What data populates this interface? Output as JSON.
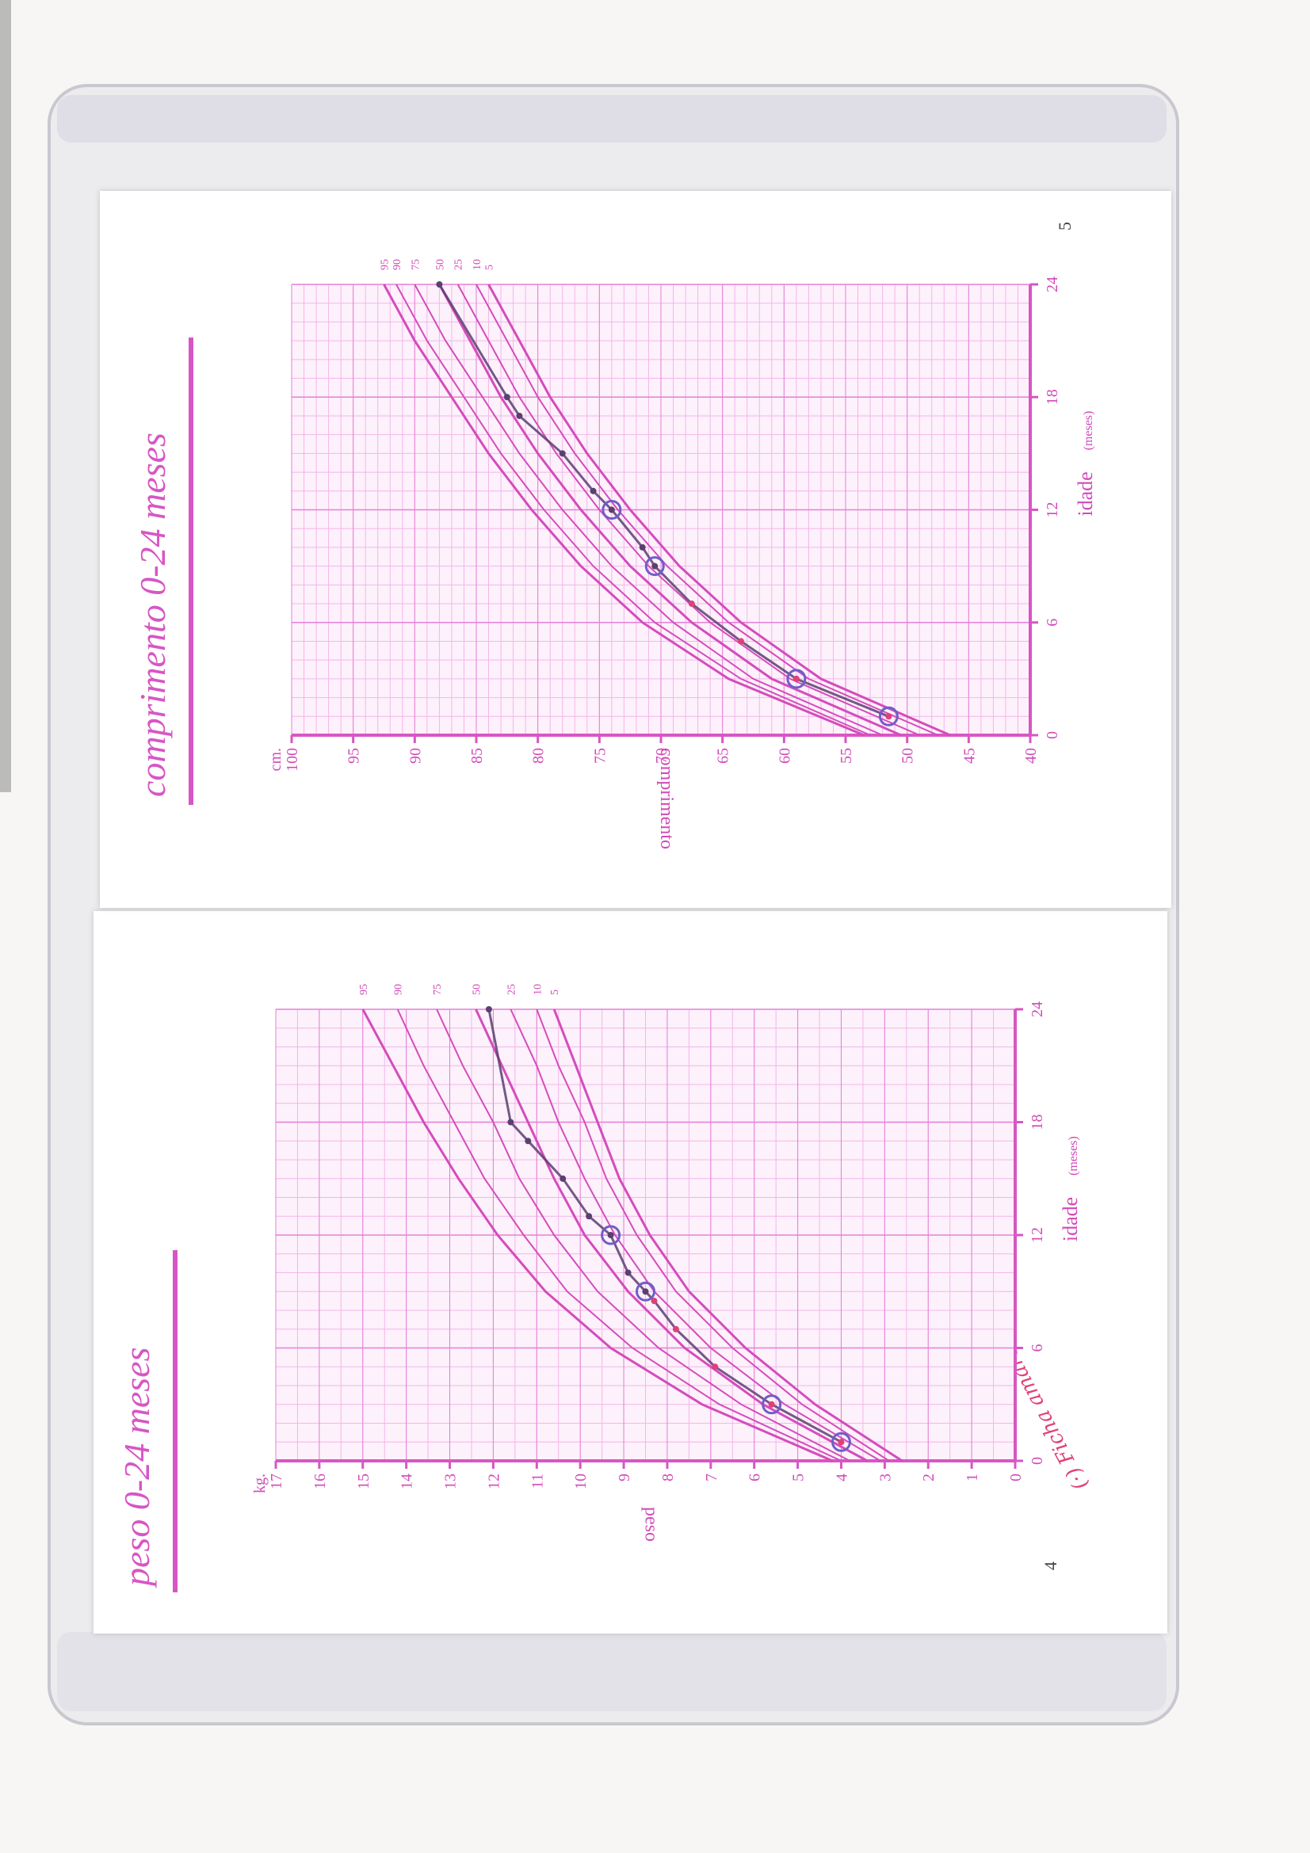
{
  "colors": {
    "accent": "#d756c4",
    "grid_minor": "#f3b6ea",
    "grid_major": "#e480d6",
    "curve": "#d44cbc",
    "pen_blue": "#6e5ec8",
    "pen_dark": "#5a4070",
    "pen_red": "#e0407a"
  },
  "pages": {
    "left": {
      "title": "peso 0-24 meses",
      "number": "4"
    },
    "right": {
      "title": "comprimento 0-24 meses",
      "number": "5"
    }
  },
  "handwritten_note": "(·) Ficha amarela",
  "chart_data": [
    {
      "type": "line",
      "title": "peso 0-24 meses",
      "xlabel": "idade",
      "xlabel_unit": "(meses)",
      "ylabel": "peso",
      "yunit": "kg.",
      "xlim": [
        0,
        24
      ],
      "ylim": [
        0,
        17
      ],
      "x_ticks": [
        0,
        6,
        12,
        18,
        24
      ],
      "y_ticks": [
        0,
        1,
        2,
        3,
        4,
        5,
        6,
        7,
        8,
        9,
        10,
        11,
        12,
        13,
        14,
        15,
        16,
        17
      ],
      "grid": true,
      "percentile_curves": [
        {
          "name": "95",
          "x": [
            0,
            3,
            6,
            9,
            12,
            15,
            18,
            21,
            24
          ],
          "values": [
            4.2,
            7.2,
            9.3,
            10.8,
            11.9,
            12.8,
            13.6,
            14.3,
            15.0
          ]
        },
        {
          "name": "90",
          "x": [
            0,
            3,
            6,
            9,
            12,
            15,
            18,
            21,
            24
          ],
          "values": [
            4.0,
            6.8,
            8.8,
            10.3,
            11.3,
            12.2,
            12.9,
            13.6,
            14.2
          ]
        },
        {
          "name": "75",
          "x": [
            0,
            3,
            6,
            9,
            12,
            15,
            18,
            21,
            24
          ],
          "values": [
            3.8,
            6.3,
            8.2,
            9.6,
            10.6,
            11.4,
            12.0,
            12.7,
            13.3
          ]
        },
        {
          "name": "50",
          "x": [
            0,
            3,
            6,
            9,
            12,
            15,
            18,
            21,
            24
          ],
          "values": [
            3.4,
            5.8,
            7.6,
            8.9,
            9.9,
            10.6,
            11.2,
            11.8,
            12.4
          ]
        },
        {
          "name": "25",
          "x": [
            0,
            3,
            6,
            9,
            12,
            15,
            18,
            21,
            24
          ],
          "values": [
            3.1,
            5.3,
            7.0,
            8.3,
            9.2,
            9.9,
            10.5,
            11.0,
            11.6
          ]
        },
        {
          "name": "10",
          "x": [
            0,
            3,
            6,
            9,
            12,
            15,
            18,
            21,
            24
          ],
          "values": [
            2.9,
            4.9,
            6.5,
            7.8,
            8.7,
            9.4,
            9.9,
            10.5,
            11.0
          ]
        },
        {
          "name": "5",
          "x": [
            0,
            3,
            6,
            9,
            12,
            15,
            18,
            21,
            24
          ],
          "values": [
            2.6,
            4.6,
            6.2,
            7.5,
            8.4,
            9.1,
            9.6,
            10.1,
            10.6
          ]
        }
      ],
      "child_measurements": {
        "x": [
          1.0,
          3.0,
          5.0,
          7.0,
          8.5,
          9.0,
          10.0,
          12.0,
          13.0,
          15.0,
          17.0,
          18.0,
          24.0
        ],
        "values": [
          4.0,
          5.6,
          6.9,
          7.8,
          8.3,
          8.5,
          8.9,
          9.3,
          9.8,
          10.4,
          11.2,
          11.6,
          12.1
        ]
      },
      "circled_points": {
        "x": [
          1.0,
          3.0,
          9.0,
          12.0
        ],
        "values": [
          4.0,
          5.6,
          8.5,
          9.3
        ]
      }
    },
    {
      "type": "line",
      "title": "comprimento 0-24 meses",
      "xlabel": "idade",
      "xlabel_unit": "(meses)",
      "ylabel": "comprimento",
      "yunit": "cm.",
      "xlim": [
        0,
        24
      ],
      "ylim": [
        40,
        100
      ],
      "x_ticks": [
        0,
        6,
        12,
        18,
        24
      ],
      "y_ticks": [
        40,
        45,
        50,
        55,
        60,
        65,
        70,
        75,
        80,
        85,
        90,
        95,
        100
      ],
      "grid": true,
      "percentile_curves": [
        {
          "name": "95",
          "x": [
            0,
            3,
            6,
            9,
            12,
            15,
            18,
            21,
            24
          ],
          "values": [
            53.5,
            64.5,
            71.5,
            76.5,
            80.5,
            84.0,
            87.0,
            90.0,
            92.5
          ]
        },
        {
          "name": "90",
          "x": [
            0,
            3,
            6,
            9,
            12,
            15,
            18,
            21,
            24
          ],
          "values": [
            53.0,
            63.5,
            70.5,
            75.5,
            79.5,
            83.0,
            86.0,
            89.0,
            91.5
          ]
        },
        {
          "name": "75",
          "x": [
            0,
            3,
            6,
            9,
            12,
            15,
            18,
            21,
            24
          ],
          "values": [
            52.0,
            62.5,
            69.0,
            74.0,
            78.0,
            81.5,
            84.5,
            87.5,
            90.0
          ]
        },
        {
          "name": "50",
          "x": [
            0,
            3,
            6,
            9,
            12,
            15,
            18,
            21,
            24
          ],
          "values": [
            50.5,
            61.0,
            67.5,
            72.5,
            76.5,
            80.0,
            83.0,
            85.5,
            88.0
          ]
        },
        {
          "name": "25",
          "x": [
            0,
            3,
            6,
            9,
            12,
            15,
            18,
            21,
            24
          ],
          "values": [
            49.0,
            59.5,
            66.0,
            71.0,
            75.0,
            78.5,
            81.5,
            84.0,
            86.5
          ]
        },
        {
          "name": "10",
          "x": [
            0,
            3,
            6,
            9,
            12,
            15,
            18,
            21,
            24
          ],
          "values": [
            47.5,
            58.0,
            64.5,
            69.5,
            73.5,
            77.0,
            80.0,
            82.5,
            85.0
          ]
        },
        {
          "name": "5",
          "x": [
            0,
            3,
            6,
            9,
            12,
            15,
            18,
            21,
            24
          ],
          "values": [
            46.5,
            57.0,
            63.5,
            68.5,
            72.5,
            76.0,
            79.0,
            81.5,
            84.0
          ]
        }
      ],
      "child_measurements": {
        "x": [
          1.0,
          3.0,
          5.0,
          7.0,
          9.0,
          10.0,
          12.0,
          13.0,
          15.0,
          17.0,
          18.0,
          24.0
        ],
        "values": [
          51.5,
          59.0,
          63.5,
          67.5,
          70.5,
          71.5,
          74.0,
          75.5,
          78.0,
          81.5,
          82.5,
          88.0
        ]
      },
      "circled_points": {
        "x": [
          1.0,
          3.0,
          9.0,
          12.0
        ],
        "values": [
          51.5,
          59.0,
          70.5,
          74.0
        ]
      }
    }
  ]
}
